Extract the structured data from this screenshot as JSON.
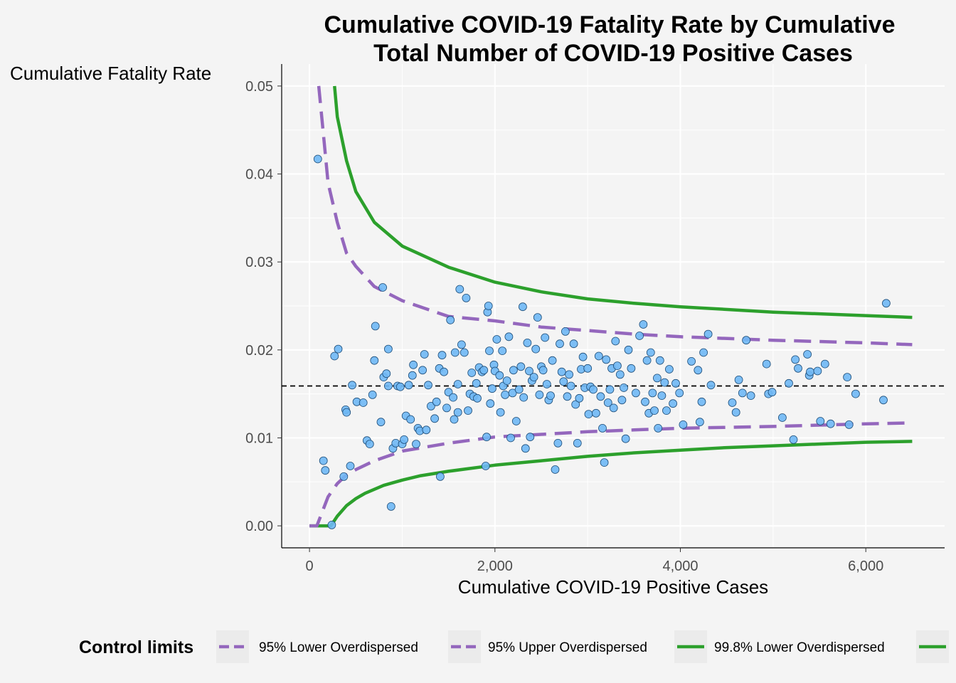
{
  "chart_data": {
    "type": "scatter",
    "title_lines": [
      "Cumulative COVID-19 Fatality Rate by Cumulative",
      "Total Number of COVID-19 Positive Cases"
    ],
    "xlabel": "Cumulative COVID-19 Positive Cases",
    "ylabel": "Cumulative Fatality Rate",
    "xlim": [
      -300,
      6850
    ],
    "ylim": [
      -0.0025,
      0.0525
    ],
    "x_ticks": [
      0,
      2000,
      4000,
      6000
    ],
    "x_tick_labels": [
      "0",
      "2,000",
      "4,000",
      "6,000"
    ],
    "y_ticks": [
      0.0,
      0.01,
      0.02,
      0.03,
      0.04,
      0.05
    ],
    "y_tick_labels": [
      "0.00",
      "0.01",
      "0.02",
      "0.03",
      "0.04",
      "0.05"
    ],
    "grid": true,
    "legend_position": "bottom",
    "legend_title": "Control limits",
    "legend_entries": [
      {
        "label": "95% Lower Overdispersed",
        "color": "#9467bd",
        "dash": true
      },
      {
        "label": "95% Upper Overdispersed",
        "color": "#9467bd",
        "dash": true
      },
      {
        "label": "99.8% Lower Overdispersed",
        "color": "#2ca02c",
        "dash": false
      },
      {
        "label": "",
        "color": "#2ca02c",
        "dash": false
      }
    ],
    "mean_rate": 0.0159,
    "point_color": "#6fb8f5",
    "point_outline": "#1f4e79",
    "series": [
      {
        "color": "#2ca02c",
        "dash": false,
        "x": [
          0,
          150,
          230,
          300,
          400,
          500,
          600,
          800,
          1000,
          1200,
          1500,
          2000,
          2500,
          3000,
          3500,
          4000,
          4500,
          5000,
          5500,
          6000,
          6500
        ],
        "y": [
          0.0,
          0.0,
          0.0,
          0.0011,
          0.0023,
          0.0031,
          0.0037,
          0.0046,
          0.0052,
          0.0057,
          0.0062,
          0.0069,
          0.0074,
          0.0079,
          0.0083,
          0.0086,
          0.0089,
          0.0091,
          0.0093,
          0.0095,
          0.0096
        ]
      },
      {
        "color": "#9467bd",
        "dash": true,
        "x": [
          0,
          80,
          200,
          300,
          400,
          500,
          700,
          1000,
          1500,
          2000,
          2500,
          3000,
          3500,
          4000,
          5000,
          6000,
          6500
        ],
        "y": [
          0.0,
          0.0,
          0.0033,
          0.0048,
          0.0058,
          0.0064,
          0.0074,
          0.0085,
          0.0094,
          0.0101,
          0.0104,
          0.0107,
          0.0109,
          0.0111,
          0.0113,
          0.0116,
          0.0117
        ]
      },
      {
        "color": "#9467bd",
        "dash": true,
        "x": [
          100,
          150,
          200,
          300,
          400,
          500,
          700,
          1000,
          1500,
          2000,
          2500,
          3000,
          3500,
          4000,
          5000,
          6000,
          6500
        ],
        "y": [
          0.05,
          0.0445,
          0.039,
          0.0345,
          0.031,
          0.0295,
          0.0272,
          0.0256,
          0.0238,
          0.0233,
          0.0226,
          0.0222,
          0.0218,
          0.0215,
          0.0211,
          0.0208,
          0.0206
        ]
      },
      {
        "color": "#2ca02c",
        "dash": false,
        "x": [
          270,
          300,
          400,
          500,
          700,
          1000,
          1500,
          2000,
          2500,
          3000,
          3500,
          4000,
          5000,
          6000,
          6500
        ],
        "y": [
          0.05,
          0.0465,
          0.0415,
          0.038,
          0.0345,
          0.0318,
          0.0294,
          0.0277,
          0.0266,
          0.0258,
          0.0253,
          0.0249,
          0.0243,
          0.0239,
          0.0237
        ]
      }
    ],
    "points": [
      [
        90,
        0.0417
      ],
      [
        150,
        0.0074
      ],
      [
        170,
        0.0063
      ],
      [
        240,
        0.0001
      ],
      [
        270,
        0.0193
      ],
      [
        310,
        0.0201
      ],
      [
        370,
        0.0056
      ],
      [
        390,
        0.0132
      ],
      [
        400,
        0.0129
      ],
      [
        440,
        0.0068
      ],
      [
        460,
        0.016
      ],
      [
        510,
        0.0141
      ],
      [
        580,
        0.014
      ],
      [
        620,
        0.0097
      ],
      [
        650,
        0.0093
      ],
      [
        680,
        0.0149
      ],
      [
        700,
        0.0188
      ],
      [
        710,
        0.0227
      ],
      [
        770,
        0.0118
      ],
      [
        790,
        0.0271
      ],
      [
        800,
        0.0169
      ],
      [
        830,
        0.0173
      ],
      [
        850,
        0.0159
      ],
      [
        850,
        0.0201
      ],
      [
        880,
        0.0022
      ],
      [
        900,
        0.0088
      ],
      [
        930,
        0.0094
      ],
      [
        950,
        0.0159
      ],
      [
        980,
        0.0158
      ],
      [
        1000,
        0.0093
      ],
      [
        1020,
        0.0098
      ],
      [
        1040,
        0.0125
      ],
      [
        1070,
        0.016
      ],
      [
        1090,
        0.0121
      ],
      [
        1110,
        0.0171
      ],
      [
        1120,
        0.0183
      ],
      [
        1150,
        0.0093
      ],
      [
        1170,
        0.0111
      ],
      [
        1190,
        0.0108
      ],
      [
        1220,
        0.0177
      ],
      [
        1240,
        0.0195
      ],
      [
        1260,
        0.0109
      ],
      [
        1280,
        0.016
      ],
      [
        1310,
        0.0136
      ],
      [
        1350,
        0.0122
      ],
      [
        1370,
        0.0141
      ],
      [
        1400,
        0.0179
      ],
      [
        1410,
        0.0056
      ],
      [
        1430,
        0.0194
      ],
      [
        1450,
        0.0175
      ],
      [
        1480,
        0.0134
      ],
      [
        1500,
        0.0152
      ],
      [
        1520,
        0.0234
      ],
      [
        1550,
        0.0146
      ],
      [
        1560,
        0.0121
      ],
      [
        1570,
        0.0197
      ],
      [
        1600,
        0.0161
      ],
      [
        1600,
        0.0129
      ],
      [
        1620,
        0.0269
      ],
      [
        1640,
        0.0206
      ],
      [
        1670,
        0.0197
      ],
      [
        1690,
        0.0259
      ],
      [
        1710,
        0.0131
      ],
      [
        1730,
        0.015
      ],
      [
        1750,
        0.0174
      ],
      [
        1770,
        0.0147
      ],
      [
        1800,
        0.0162
      ],
      [
        1810,
        0.0145
      ],
      [
        1830,
        0.018
      ],
      [
        1860,
        0.0175
      ],
      [
        1880,
        0.0177
      ],
      [
        1900,
        0.0068
      ],
      [
        1910,
        0.0101
      ],
      [
        1920,
        0.0243
      ],
      [
        1930,
        0.025
      ],
      [
        1940,
        0.0199
      ],
      [
        1950,
        0.0139
      ],
      [
        1970,
        0.0156
      ],
      [
        1990,
        0.0183
      ],
      [
        2000,
        0.0176
      ],
      [
        2020,
        0.0212
      ],
      [
        2050,
        0.0171
      ],
      [
        2060,
        0.0129
      ],
      [
        2080,
        0.0199
      ],
      [
        2090,
        0.0159
      ],
      [
        2110,
        0.0149
      ],
      [
        2130,
        0.0165
      ],
      [
        2150,
        0.0215
      ],
      [
        2170,
        0.01
      ],
      [
        2190,
        0.0151
      ],
      [
        2200,
        0.0177
      ],
      [
        2230,
        0.0119
      ],
      [
        2260,
        0.0155
      ],
      [
        2280,
        0.0181
      ],
      [
        2300,
        0.0249
      ],
      [
        2310,
        0.0146
      ],
      [
        2330,
        0.0088
      ],
      [
        2350,
        0.0208
      ],
      [
        2370,
        0.0176
      ],
      [
        2380,
        0.0101
      ],
      [
        2400,
        0.0165
      ],
      [
        2420,
        0.0169
      ],
      [
        2440,
        0.0201
      ],
      [
        2460,
        0.0237
      ],
      [
        2480,
        0.0149
      ],
      [
        2500,
        0.0181
      ],
      [
        2520,
        0.0177
      ],
      [
        2540,
        0.0214
      ],
      [
        2560,
        0.0161
      ],
      [
        2580,
        0.0143
      ],
      [
        2600,
        0.0148
      ],
      [
        2620,
        0.0188
      ],
      [
        2650,
        0.0064
      ],
      [
        2680,
        0.0094
      ],
      [
        2700,
        0.0207
      ],
      [
        2720,
        0.0175
      ],
      [
        2740,
        0.0164
      ],
      [
        2760,
        0.0221
      ],
      [
        2780,
        0.0147
      ],
      [
        2800,
        0.0172
      ],
      [
        2820,
        0.0159
      ],
      [
        2850,
        0.0207
      ],
      [
        2870,
        0.0138
      ],
      [
        2890,
        0.0094
      ],
      [
        2910,
        0.0145
      ],
      [
        2930,
        0.0178
      ],
      [
        2950,
        0.0192
      ],
      [
        2970,
        0.0157
      ],
      [
        3000,
        0.0179
      ],
      [
        3010,
        0.0127
      ],
      [
        3030,
        0.0158
      ],
      [
        3060,
        0.0155
      ],
      [
        3090,
        0.0128
      ],
      [
        3120,
        0.0193
      ],
      [
        3140,
        0.0147
      ],
      [
        3160,
        0.0111
      ],
      [
        3180,
        0.0072
      ],
      [
        3200,
        0.0189
      ],
      [
        3220,
        0.014
      ],
      [
        3240,
        0.0155
      ],
      [
        3260,
        0.0179
      ],
      [
        3280,
        0.0134
      ],
      [
        3300,
        0.021
      ],
      [
        3320,
        0.0182
      ],
      [
        3350,
        0.0172
      ],
      [
        3370,
        0.0143
      ],
      [
        3390,
        0.0157
      ],
      [
        3410,
        0.0099
      ],
      [
        3440,
        0.02
      ],
      [
        3470,
        0.0179
      ],
      [
        3520,
        0.0151
      ],
      [
        3560,
        0.0216
      ],
      [
        3600,
        0.0229
      ],
      [
        3620,
        0.0141
      ],
      [
        3640,
        0.0188
      ],
      [
        3660,
        0.0128
      ],
      [
        3680,
        0.0197
      ],
      [
        3700,
        0.0151
      ],
      [
        3720,
        0.0131
      ],
      [
        3750,
        0.0168
      ],
      [
        3760,
        0.0111
      ],
      [
        3780,
        0.0188
      ],
      [
        3800,
        0.0148
      ],
      [
        3830,
        0.0163
      ],
      [
        3850,
        0.0131
      ],
      [
        3880,
        0.0178
      ],
      [
        3920,
        0.0139
      ],
      [
        3950,
        0.0162
      ],
      [
        3990,
        0.0151
      ],
      [
        4030,
        0.0115
      ],
      [
        4120,
        0.0187
      ],
      [
        4190,
        0.0177
      ],
      [
        4210,
        0.0118
      ],
      [
        4230,
        0.0141
      ],
      [
        4250,
        0.0197
      ],
      [
        4300,
        0.0218
      ],
      [
        4330,
        0.016
      ],
      [
        4560,
        0.014
      ],
      [
        4600,
        0.0129
      ],
      [
        4630,
        0.0166
      ],
      [
        4670,
        0.0151
      ],
      [
        4710,
        0.0211
      ],
      [
        4760,
        0.0148
      ],
      [
        4930,
        0.0184
      ],
      [
        4950,
        0.015
      ],
      [
        4990,
        0.0152
      ],
      [
        5100,
        0.0123
      ],
      [
        5170,
        0.0162
      ],
      [
        5220,
        0.0098
      ],
      [
        5240,
        0.0189
      ],
      [
        5270,
        0.0179
      ],
      [
        5370,
        0.0195
      ],
      [
        5390,
        0.0171
      ],
      [
        5400,
        0.0175
      ],
      [
        5480,
        0.0176
      ],
      [
        5510,
        0.0119
      ],
      [
        5560,
        0.0184
      ],
      [
        5620,
        0.0116
      ],
      [
        5800,
        0.0169
      ],
      [
        5820,
        0.0115
      ],
      [
        5890,
        0.015
      ],
      [
        6190,
        0.0143
      ],
      [
        6220,
        0.0253
      ]
    ]
  }
}
